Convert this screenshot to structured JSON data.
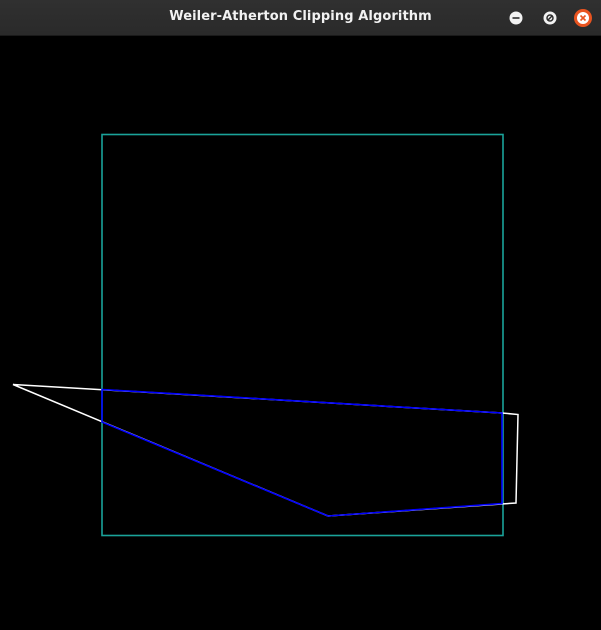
{
  "window": {
    "title": "Weiler-Atherton Clipping Algorithm"
  },
  "controls": {
    "minimize": "minimize-icon",
    "maximize": "maximize-icon",
    "close": "close-icon"
  },
  "colors": {
    "background": "#000000",
    "clip_window": "#1aa39a",
    "subject_polygon": "#ffffff",
    "clipped_polygon": "#0000ff",
    "close_button": "#e95420"
  }
}
